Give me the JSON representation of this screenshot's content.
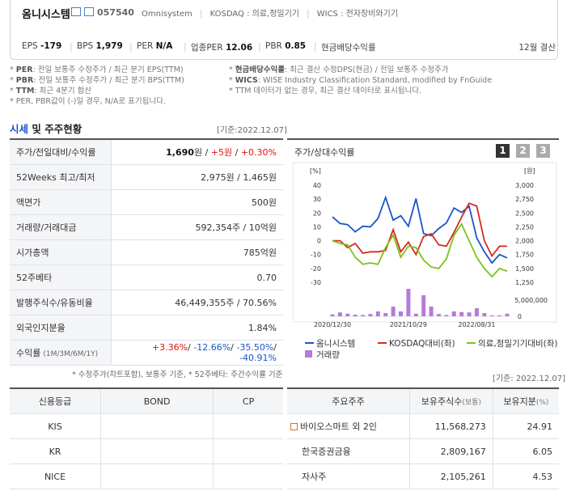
{
  "header": {
    "name": "옴니시스템",
    "code": "057540",
    "tags": [
      "Omnisystem",
      "KOSDAQ : 의료,정밀기기",
      "WICS : 전자장비와기기"
    ]
  },
  "metrics": [
    {
      "label": "EPS",
      "value": "-179"
    },
    {
      "label": "BPS",
      "value": "1,979"
    },
    {
      "label": "PER",
      "value": "N/A"
    },
    {
      "label": "업종PER",
      "value": "12.06"
    },
    {
      "label": "PBR",
      "value": "0.85"
    },
    {
      "label": "현금배당수익률"
    }
  ],
  "settlement": "12월 결산",
  "notes_left": [
    {
      "key": "PER",
      "text": ": 전일 보통주 수정주가 / 최근 분기 EPS(TTM)"
    },
    {
      "key": "PBR",
      "text": ": 전일 보통주 수정주가 / 최근 분기 BPS(TTM)"
    },
    {
      "key": "TTM",
      "text": ": 최근 4분기 합산"
    },
    {
      "text": "* PER, PBR값이 (-)일 경우, N/A로 표기됩니다."
    }
  ],
  "notes_right": [
    {
      "key": "현금배당수익률",
      "text": ": 최근 결산 수정DPS(현금) / 전일 보통주 수정주가"
    },
    {
      "key": "WICS",
      "text": ": WISE Industry Classification Standard, modified by FnGuide"
    },
    {
      "text": "* TTM 데이터가 없는 경우, 최근 결산 데이터로 표시됩니다."
    }
  ],
  "section": {
    "title_em": "시세",
    "title_rest": " 및 주주현황",
    "date": "[기준:2022.12.07]"
  },
  "quote_table": [
    {
      "label": "주가/전일대비/수익률",
      "parts": [
        {
          "text": "1,690",
          "bold": true
        },
        {
          "text": "원 / "
        },
        {
          "text": "+5원",
          "color": "#e3120b"
        },
        {
          "text": " / "
        },
        {
          "text": "+0.30%",
          "color": "#e3120b"
        }
      ]
    },
    {
      "label": "52Weeks 최고/최저",
      "parts": [
        {
          "text": "2,975원 / 1,465원"
        }
      ]
    },
    {
      "label": "액면가",
      "parts": [
        {
          "text": "500원"
        }
      ]
    },
    {
      "label": "거래량/거래대금",
      "parts": [
        {
          "text": "592,354주 / 10억원"
        }
      ]
    },
    {
      "label": "시가총액",
      "parts": [
        {
          "text": "785억원"
        }
      ]
    },
    {
      "label": "52주베타",
      "parts": [
        {
          "text": "0.70"
        }
      ]
    },
    {
      "label": "발행주식수/유동비율",
      "parts": [
        {
          "text": "46,449,355주 / 70.56%"
        }
      ]
    },
    {
      "label": "외국인지분율",
      "parts": [
        {
          "text": "1.84%"
        }
      ]
    },
    {
      "label": "수익률",
      "sub": "(1M/3M/6M/1Y)",
      "parts": [
        {
          "text": "+3.36%",
          "color": "#e3120b"
        },
        {
          "text": "/ "
        },
        {
          "text": "-12.66%",
          "color": "#1a55c7"
        },
        {
          "text": "/ "
        },
        {
          "text": "-35.50%",
          "color": "#1a55c7"
        },
        {
          "text": "/ "
        },
        {
          "text": "-40.91%",
          "color": "#1a55c7"
        }
      ]
    }
  ],
  "quote_footnote": "* 수정주가(차트포함), 보통주 기준, * 52주베타: 주간수익률 기준",
  "chart_buttons": [
    "1",
    "2",
    "3"
  ],
  "chart_data": {
    "type": "line",
    "title": "주가/상대수익률",
    "y_unit": "[%]",
    "y2_unit": "[원]",
    "categories": [
      "2020/12/30",
      null,
      null,
      null,
      null,
      null,
      null,
      null,
      null,
      null,
      "2021/10/29",
      null,
      null,
      null,
      null,
      null,
      null,
      null,
      null,
      "2022/08/31",
      null,
      null,
      null,
      null
    ],
    "ylim": [
      -30,
      40
    ],
    "yticks": [
      40,
      30,
      20,
      10,
      0,
      -10,
      -20,
      -30
    ],
    "y2lim": [
      1250,
      3000
    ],
    "y2ticks": [
      {
        "value": 3000,
        "label": "3,000"
      },
      {
        "value": 2750,
        "label": "2,750"
      },
      {
        "value": 2500,
        "label": "2,500"
      },
      {
        "value": 2250,
        "label": "2,250"
      },
      {
        "value": 2000,
        "label": "2,000"
      },
      {
        "value": 1750,
        "label": "1,750"
      },
      {
        "value": 1500,
        "label": "1,500"
      },
      {
        "value": 1250,
        "label": "1,250"
      }
    ],
    "y3lim": [
      0,
      9000000
    ],
    "y3ticks": [
      {
        "value": 5000000,
        "label": "5,000,000"
      },
      0
    ],
    "series": [
      {
        "name": "옴니시스템",
        "color": "#1a55c7",
        "axis": "y2",
        "values": [
          2430,
          2310,
          2290,
          2160,
          2260,
          2250,
          2400,
          2780,
          2370,
          2450,
          2260,
          2760,
          2130,
          2090,
          2220,
          2320,
          2590,
          2510,
          2620,
          2050,
          1800,
          1600,
          1750,
          1690
        ]
      },
      {
        "name": "KOSDAQ대비(좌)",
        "color": "#d42a1c",
        "values": [
          0,
          0,
          -5,
          -2,
          -9,
          -8,
          -8,
          -7,
          8,
          -8,
          -1,
          -10,
          3,
          5,
          -3,
          -4,
          6,
          17,
          27,
          25,
          0,
          -11,
          -4,
          -4
        ]
      },
      {
        "name": "의료,정밀기기대비(좌)",
        "color": "#7cc21a",
        "values": [
          0,
          -2,
          -3,
          -12,
          -17,
          -16,
          -17,
          -5,
          4,
          -12,
          -4,
          -5,
          -14,
          -19,
          -20,
          -13,
          4,
          12,
          0,
          -12,
          -20,
          -26,
          -20,
          -22
        ]
      },
      {
        "name": "거래량",
        "color": "#b67ad9",
        "type": "bar",
        "axis": "y3",
        "values": [
          600000,
          1200000,
          800000,
          500000,
          400000,
          700000,
          1500000,
          1000000,
          3000000,
          1500000,
          8500000,
          800000,
          6500000,
          3000000,
          700000,
          400000,
          1500000,
          1300000,
          1200000,
          2500000,
          1000000,
          300000,
          300000,
          800000
        ]
      }
    ]
  },
  "holder_date": "[기준: 2022.12.07]",
  "credit_table": {
    "headers": [
      "신용등급",
      "BOND",
      "CP"
    ],
    "rows": [
      "KIS",
      "KR",
      "NICE"
    ]
  },
  "holder_table": {
    "headers": [
      "주요주주",
      "보유주식수",
      "(보통)",
      "보유지분",
      "(%)"
    ],
    "rows": [
      {
        "name": "바이오스마트 외 2인",
        "shares": "11,568,273",
        "pct": "24.91",
        "expandable": true
      },
      {
        "name": "한국증권금융",
        "shares": "2,809,167",
        "pct": "6.05"
      },
      {
        "name": "자사주",
        "shares": "2,105,261",
        "pct": "4.53"
      }
    ]
  }
}
